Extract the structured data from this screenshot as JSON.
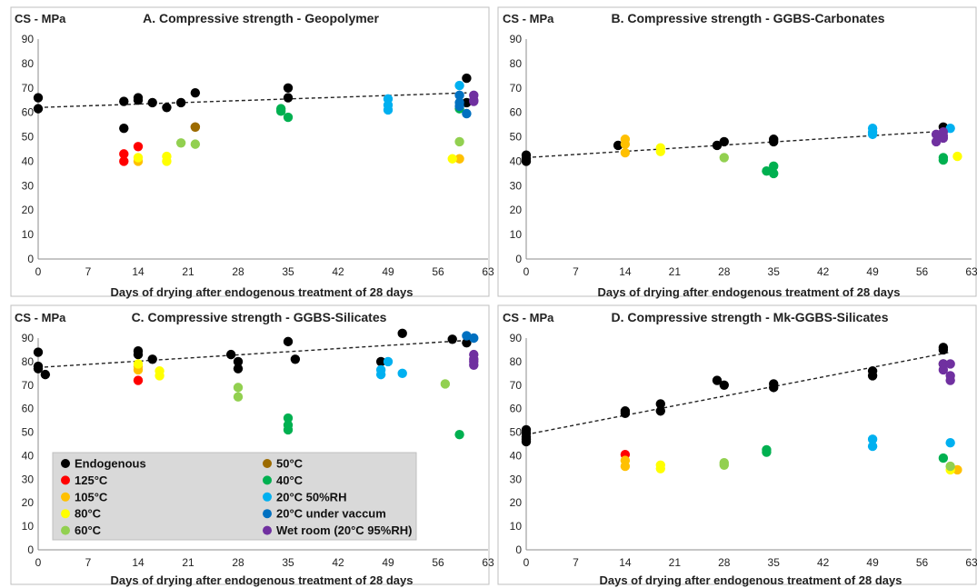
{
  "series_styles": [
    {
      "key": "endo",
      "name": "Endogenous",
      "color": "#000000"
    },
    {
      "key": "t125",
      "name": "125°C",
      "color": "#ff0000"
    },
    {
      "key": "t105",
      "name": "105°C",
      "color": "#ffc000"
    },
    {
      "key": "t80",
      "name": "80°C",
      "color": "#ffff00"
    },
    {
      "key": "t60",
      "name": "60°C",
      "color": "#92d050"
    },
    {
      "key": "t50",
      "name": "50°C",
      "color": "#9c6b00"
    },
    {
      "key": "t40",
      "name": "40°C",
      "color": "#00b050"
    },
    {
      "key": "rh50",
      "name": "20°C 50%RH",
      "color": "#00b0f0"
    },
    {
      "key": "vac",
      "name": "20°C under vaccum",
      "color": "#0070c0"
    },
    {
      "key": "wet",
      "name": "Wet room (20°C 95%RH)",
      "color": "#7030a0"
    }
  ],
  "legend": {
    "placement": "bottom-left of panel C",
    "columns": [
      [
        "endo",
        "t125",
        "t105",
        "t80",
        "t60"
      ],
      [
        "t50",
        "t40",
        "rh50",
        "vac",
        "wet"
      ]
    ]
  },
  "chart_data": [
    {
      "type": "scatter",
      "title": "A. Compressive strength - Geopolymer",
      "ylabel": "CS - MPa",
      "xlabel": "Days of drying after endogenous treatment of 28 days",
      "xlim": [
        0,
        63
      ],
      "ylim": [
        0,
        90
      ],
      "xticks": [
        0,
        7,
        14,
        21,
        28,
        35,
        42,
        49,
        56,
        63
      ],
      "yticks": [
        0,
        10,
        20,
        30,
        40,
        50,
        60,
        70,
        80,
        90
      ],
      "grid": false,
      "trendline": {
        "series": "Endogenous",
        "style": "dashed",
        "x": [
          0,
          60
        ],
        "y": [
          62,
          68
        ]
      },
      "series": [
        {
          "name": "Endogenous",
          "x": [
            0,
            0,
            12,
            12,
            14,
            14,
            16,
            18,
            20,
            22,
            35,
            35,
            60,
            60
          ],
          "y": [
            66,
            61.5,
            64.5,
            53.5,
            66,
            65,
            64,
            62,
            64,
            68,
            70,
            66,
            74,
            64
          ]
        },
        {
          "name": "125°C",
          "x": [
            12,
            12,
            14
          ],
          "y": [
            43,
            40,
            46
          ]
        },
        {
          "name": "105°C",
          "x": [
            14,
            59
          ],
          "y": [
            40,
            41
          ]
        },
        {
          "name": "80°C",
          "x": [
            14,
            18,
            18,
            58
          ],
          "y": [
            41.5,
            42,
            40,
            41
          ]
        },
        {
          "name": "60°C",
          "x": [
            20,
            22,
            59
          ],
          "y": [
            47.5,
            47,
            48
          ]
        },
        {
          "name": "50°C",
          "x": [
            22,
            22
          ],
          "y": [
            54,
            54
          ]
        },
        {
          "name": "40°C",
          "x": [
            34,
            34,
            35,
            59
          ],
          "y": [
            61.5,
            60.5,
            58,
            61.5
          ]
        },
        {
          "name": "20°C 50%RH",
          "x": [
            49,
            49,
            49,
            59
          ],
          "y": [
            65.5,
            63,
            61,
            71
          ]
        },
        {
          "name": "20°C under vaccum",
          "x": [
            59,
            59,
            59,
            60
          ],
          "y": [
            67,
            64,
            62.5,
            59.5
          ]
        },
        {
          "name": "Wet room (20°C 95%RH)",
          "x": [
            61,
            61,
            61
          ],
          "y": [
            67,
            65,
            64.5
          ]
        }
      ]
    },
    {
      "type": "scatter",
      "title": "B. Compressive strength - GGBS-Carbonates",
      "ylabel": "CS - MPa",
      "xlabel": "Days of drying after endogenous treatment of 28 days",
      "xlim": [
        0,
        63
      ],
      "ylim": [
        0,
        90
      ],
      "xticks": [
        0,
        7,
        14,
        21,
        28,
        35,
        42,
        49,
        56,
        63
      ],
      "yticks": [
        0,
        10,
        20,
        30,
        40,
        50,
        60,
        70,
        80,
        90
      ],
      "grid": false,
      "trendline": {
        "series": "Endogenous",
        "style": "dashed",
        "x": [
          0,
          60
        ],
        "y": [
          41.5,
          52.5
        ]
      },
      "series": [
        {
          "name": "Endogenous",
          "x": [
            0,
            0,
            0,
            13,
            27,
            28,
            35,
            35,
            59
          ],
          "y": [
            42.5,
            41,
            40,
            46.5,
            46.5,
            48,
            49,
            48,
            54
          ]
        },
        {
          "name": "105°C",
          "x": [
            14,
            14,
            14
          ],
          "y": [
            49,
            47,
            43.5
          ]
        },
        {
          "name": "80°C",
          "x": [
            19,
            19,
            61
          ],
          "y": [
            45.5,
            44,
            42
          ]
        },
        {
          "name": "60°C",
          "x": [
            28
          ],
          "y": [
            41.5
          ]
        },
        {
          "name": "40°C",
          "x": [
            34,
            35,
            35,
            59,
            59
          ],
          "y": [
            36,
            38,
            35,
            41.5,
            40.5
          ]
        },
        {
          "name": "20°C 50%RH",
          "x": [
            49,
            49,
            49,
            60
          ],
          "y": [
            53.5,
            52,
            51,
            53.5
          ]
        },
        {
          "name": "Wet room (20°C 95%RH)",
          "x": [
            58,
            58,
            59,
            59,
            59
          ],
          "y": [
            51,
            48,
            52,
            49.5,
            50.5
          ]
        }
      ]
    },
    {
      "type": "scatter",
      "title": "C. Compressive strength - GGBS-Silicates",
      "ylabel": "CS - MPa",
      "xlabel": "Days of drying after endogenous treatment of 28 days",
      "xlim": [
        0,
        63
      ],
      "ylim": [
        0,
        90
      ],
      "xticks": [
        0,
        7,
        14,
        21,
        28,
        35,
        42,
        49,
        56,
        63
      ],
      "yticks": [
        0,
        10,
        20,
        30,
        40,
        50,
        60,
        70,
        80,
        90
      ],
      "grid": false,
      "trendline": {
        "series": "Endogenous",
        "style": "dashed",
        "x": [
          0,
          60
        ],
        "y": [
          77.5,
          89
        ]
      },
      "series": [
        {
          "name": "Endogenous",
          "x": [
            0,
            0,
            0,
            1,
            14,
            14,
            16,
            27,
            28,
            28,
            35,
            36,
            48,
            51,
            58,
            60
          ],
          "y": [
            84,
            78,
            77,
            74.5,
            84.5,
            83,
            81,
            83,
            80,
            77,
            88.5,
            81,
            80,
            92,
            89.5,
            88
          ]
        },
        {
          "name": "125°C",
          "x": [
            14
          ],
          "y": [
            72
          ]
        },
        {
          "name": "105°C",
          "x": [
            14,
            14
          ],
          "y": [
            78,
            76.5
          ]
        },
        {
          "name": "80°C",
          "x": [
            14,
            17,
            17
          ],
          "y": [
            79,
            76,
            74
          ]
        },
        {
          "name": "60°C",
          "x": [
            28,
            28,
            57
          ],
          "y": [
            69,
            65,
            70.5
          ]
        },
        {
          "name": "40°C",
          "x": [
            35,
            35,
            35,
            59
          ],
          "y": [
            56,
            53,
            51,
            49
          ]
        },
        {
          "name": "20°C 50%RH",
          "x": [
            48,
            48,
            49,
            51
          ],
          "y": [
            76.5,
            74.5,
            80,
            75
          ]
        },
        {
          "name": "20°C under vaccum",
          "x": [
            60,
            61
          ],
          "y": [
            91,
            90
          ]
        },
        {
          "name": "Wet room (20°C 95%RH)",
          "x": [
            61,
            61,
            61,
            61
          ],
          "y": [
            83,
            81,
            80,
            78.5
          ]
        }
      ]
    },
    {
      "type": "scatter",
      "title": "D. Compressive strength - Mk-GGBS-Silicates",
      "ylabel": "CS - MPa",
      "xlabel": "Days of drying after endogenous treatment of 28 days",
      "xlim": [
        0,
        63
      ],
      "ylim": [
        0,
        90
      ],
      "xticks": [
        0,
        7,
        14,
        21,
        28,
        35,
        42,
        49,
        56,
        63
      ],
      "yticks": [
        0,
        10,
        20,
        30,
        40,
        50,
        60,
        70,
        80,
        90
      ],
      "grid": false,
      "trendline": {
        "series": "Endogenous",
        "style": "dashed",
        "x": [
          0,
          60
        ],
        "y": [
          49,
          84
        ]
      },
      "series": [
        {
          "name": "Endogenous",
          "x": [
            0,
            0,
            0,
            0,
            0,
            14,
            14,
            19,
            19,
            27,
            28,
            35,
            35,
            49,
            49,
            59,
            59,
            59
          ],
          "y": [
            51,
            49.5,
            48,
            47,
            46,
            59,
            58,
            62,
            59,
            72,
            70,
            70.5,
            69,
            76,
            74,
            86,
            85,
            79
          ]
        },
        {
          "name": "125°C",
          "x": [
            14
          ],
          "y": [
            40.5
          ]
        },
        {
          "name": "105°C",
          "x": [
            14,
            14,
            61
          ],
          "y": [
            38,
            35.5,
            34
          ]
        },
        {
          "name": "80°C",
          "x": [
            19,
            19,
            60
          ],
          "y": [
            36,
            34.5,
            34
          ]
        },
        {
          "name": "60°C",
          "x": [
            28,
            28,
            60
          ],
          "y": [
            37,
            36,
            35.5
          ]
        },
        {
          "name": "40°C",
          "x": [
            34,
            34,
            59
          ],
          "y": [
            42.5,
            41.5,
            39
          ]
        },
        {
          "name": "20°C 50%RH",
          "x": [
            49,
            49,
            60
          ],
          "y": [
            47,
            44,
            45.5
          ]
        },
        {
          "name": "Wet room (20°C 95%RH)",
          "x": [
            59,
            59,
            60,
            60,
            60
          ],
          "y": [
            79,
            76.5,
            79,
            74,
            72
          ]
        }
      ]
    }
  ]
}
